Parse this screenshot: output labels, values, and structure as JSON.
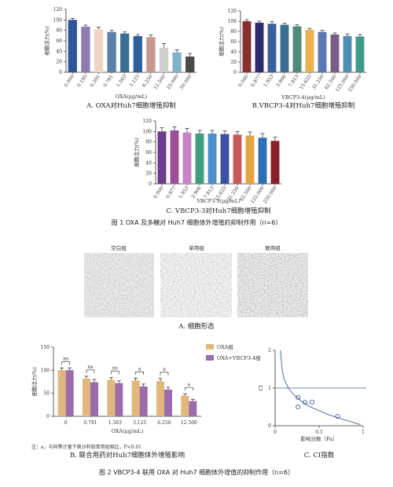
{
  "figures": {
    "fig1_caption": "图 1  OXA 及多糖对 Huh7 细胞体外增殖的抑制作用（n=6）",
    "fig2_caption": "图 2  VBCP3-4 联用 OXA 对 Huh7 细胞体外增值的抑制作用（n=6）"
  },
  "chart_data": [
    {
      "id": "A",
      "type": "bar",
      "title": "A. OXA对Huh7细胞增殖抑制",
      "xlabel": "OXA(μg/mL)",
      "ylabel": "细胞活力(%)",
      "ylim": [
        0,
        120
      ],
      "yticks": [
        0,
        20,
        40,
        60,
        80,
        100,
        120
      ],
      "categories": [
        "0.000",
        "0.195",
        "0.391",
        "0.781",
        "1.563",
        "3.125",
        "6.250",
        "12.500",
        "25.000",
        "50.000"
      ],
      "values": [
        100,
        87,
        82,
        77,
        74,
        69,
        67,
        47,
        38,
        30
      ],
      "errors": [
        3,
        3,
        4,
        3,
        3,
        3,
        4,
        8,
        5,
        6
      ],
      "colors": [
        "#2f5597",
        "#8e7cb0",
        "#f2d4c4",
        "#5b7fa6",
        "#3a6f96",
        "#2d5f9a",
        "#c8988f",
        "#cfcfcf",
        "#7fb3c9",
        "#4a4a4a"
      ]
    },
    {
      "id": "B",
      "type": "bar",
      "title": "B.VBCP3-4对Huh7细胞增殖抑制",
      "xlabel": "VBCP3-4(μg/mL)",
      "ylabel": "细胞活力(%)",
      "ylim": [
        0,
        120
      ],
      "yticks": [
        0,
        20,
        40,
        60,
        80,
        100,
        120
      ],
      "categories": [
        "0.000",
        "0.977",
        "1.953",
        "3.906",
        "7.813",
        "15.625",
        "31.250",
        "62.500",
        "125.000",
        "250.000"
      ],
      "values": [
        100,
        97,
        95,
        93,
        90,
        83,
        79,
        74,
        71,
        70
      ],
      "errors": [
        3,
        3,
        4,
        3,
        3,
        3,
        3,
        3,
        4,
        4
      ],
      "colors": [
        "#8b2e2e",
        "#2b2b6e",
        "#3a5fa0",
        "#3a6e94",
        "#4f8a7a",
        "#e9b24c",
        "#5b77b5",
        "#7a5c8a",
        "#4e8fb3",
        "#3f9a8c"
      ]
    },
    {
      "id": "C",
      "type": "bar",
      "title": "C. VBCP3-3对Huh7细胞增殖抑制",
      "xlabel": "VBCP3-3(μg/mL)",
      "ylabel": "细胞活力(%)",
      "ylim": [
        0,
        120
      ],
      "yticks": [
        0,
        20,
        40,
        60,
        80,
        100,
        120
      ],
      "categories": [
        "0.000",
        "0.977",
        "1.953",
        "3.906",
        "7.813",
        "15.625",
        "31.250",
        "62.500",
        "125.000",
        "250.000"
      ],
      "values": [
        100,
        102,
        98,
        96,
        96,
        95,
        94,
        92,
        88,
        82
      ],
      "errors": [
        7,
        7,
        8,
        6,
        6,
        6,
        6,
        7,
        8,
        7
      ],
      "colors": [
        "#6b3b8c",
        "#a04e9c",
        "#c884c8",
        "#3f9f7c",
        "#4b8fcd",
        "#3b4fa3",
        "#c85c5c",
        "#e6a23c",
        "#2f6fb8",
        "#8b1f2b"
      ]
    },
    {
      "id": "D",
      "type": "bar",
      "title": "B. 联合用药对Huh7细胞体外增殖影响",
      "xlabel": "OXA(μg/mL)",
      "ylabel": "细胞活力(%)",
      "ylim": [
        0,
        150
      ],
      "yticks": [
        0,
        50,
        100,
        150
      ],
      "categories": [
        "0",
        "0.781",
        "1.563",
        "3.125",
        "6.250",
        "12.500"
      ],
      "series": [
        {
          "name": "OXA组",
          "color": "#e2b77a",
          "values": [
            100,
            82,
            79,
            78,
            76,
            45
          ],
          "errors": [
            5,
            5,
            5,
            5,
            6,
            4
          ]
        },
        {
          "name": "OXA+VBCP3-4组",
          "color": "#9b6bab",
          "values": [
            100,
            74,
            72,
            65,
            58,
            33
          ],
          "errors": [
            5,
            6,
            5,
            5,
            5,
            4
          ]
        }
      ],
      "significance": [
        "ns",
        "ns",
        "ns",
        "a",
        "a",
        "a"
      ],
      "note": "注：a，与同等计量下奥沙利铂单用组相比，P<0.01"
    },
    {
      "id": "E",
      "type": "scatter",
      "title": "C. CI指数",
      "xlabel": "影响分数（Fa）",
      "ylabel": "CI",
      "xlim": [
        0,
        1
      ],
      "ylim": [
        0,
        2
      ],
      "xticks": [
        0,
        0.5,
        1
      ],
      "yticks": [
        0,
        1,
        2
      ],
      "points": [
        {
          "x": 0.26,
          "y": 0.75
        },
        {
          "x": 0.26,
          "y": 0.5
        },
        {
          "x": 0.34,
          "y": 0.62
        },
        {
          "x": 0.42,
          "y": 0.63
        },
        {
          "x": 0.71,
          "y": 0.25
        }
      ],
      "reference_y": 1,
      "curve": [
        [
          0.06,
          2
        ],
        [
          0.08,
          1.5
        ],
        [
          0.1,
          1.25
        ],
        [
          0.15,
          1.0
        ],
        [
          0.2,
          0.85
        ],
        [
          0.3,
          0.65
        ],
        [
          0.4,
          0.5
        ],
        [
          0.5,
          0.4
        ],
        [
          0.6,
          0.3
        ],
        [
          0.7,
          0.22
        ],
        [
          0.8,
          0.15
        ],
        [
          0.9,
          0.08
        ],
        [
          0.97,
          0.03
        ]
      ]
    }
  ],
  "morphology": {
    "groups": [
      "空白组",
      "单用组",
      "联用组"
    ],
    "caption": "A. 细胞形态"
  }
}
